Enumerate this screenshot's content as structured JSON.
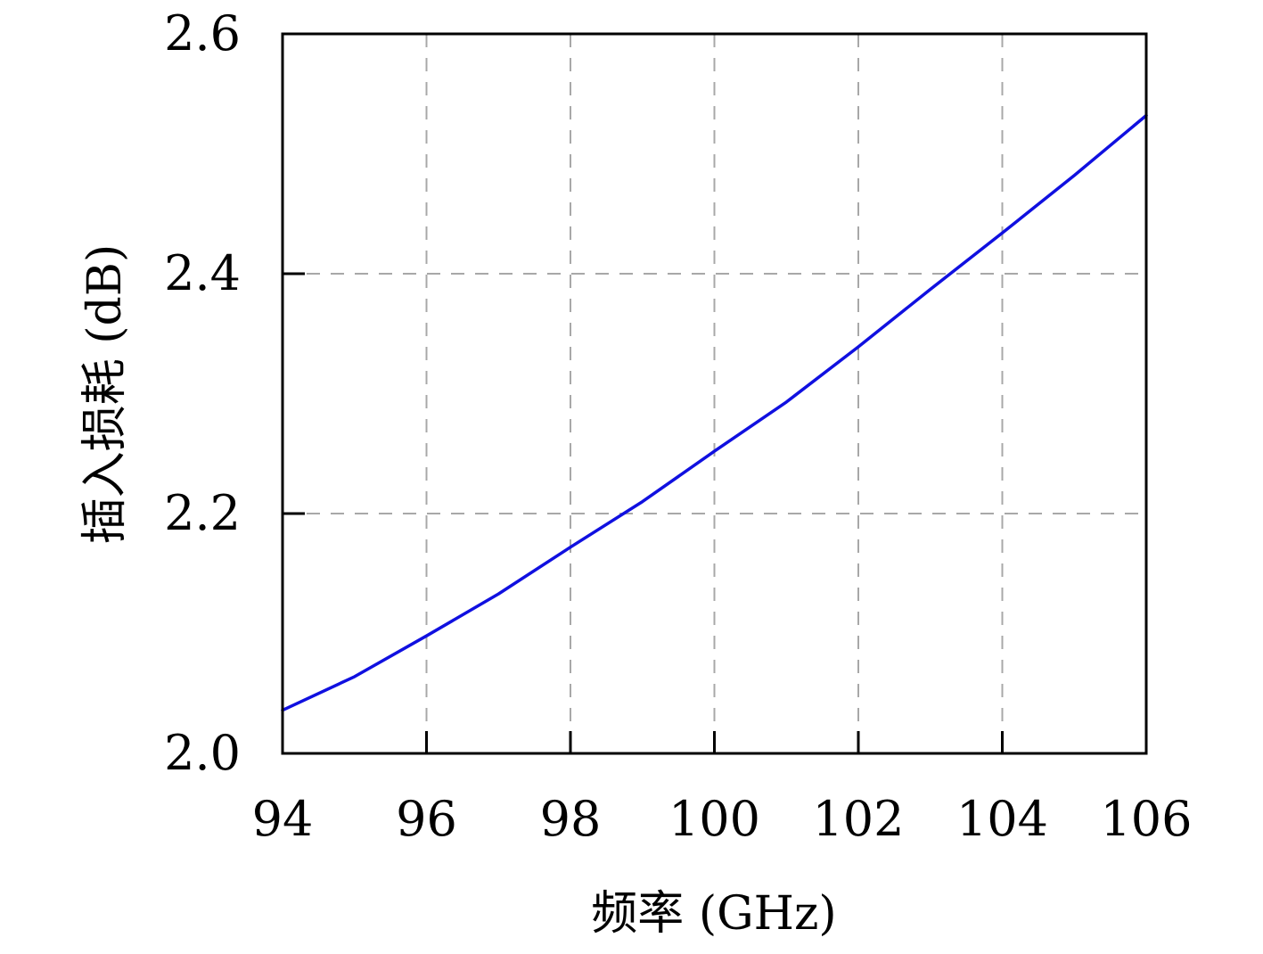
{
  "chart_data": {
    "type": "line",
    "title": "",
    "xlabel": "频率 (GHz)",
    "ylabel": "插入损耗 (dB)",
    "xlim": [
      94,
      106
    ],
    "ylim": [
      2.0,
      2.6
    ],
    "xticks": [
      94,
      96,
      98,
      100,
      102,
      104,
      106
    ],
    "yticks": [
      2.0,
      2.2,
      2.4,
      2.6
    ],
    "xtick_labels": [
      "94",
      "96",
      "98",
      "100",
      "102",
      "104",
      "106"
    ],
    "ytick_labels": [
      "2.0",
      "2.2",
      "2.4",
      "2.6"
    ],
    "grid": true,
    "grid_style": "dashed",
    "legend": "none",
    "series": [
      {
        "color": "#1010e0",
        "x": [
          94,
          95,
          96,
          97,
          98,
          99,
          100,
          101,
          102,
          103,
          104,
          105,
          106
        ],
        "y": [
          2.036,
          2.064,
          2.098,
          2.133,
          2.172,
          2.21,
          2.252,
          2.293,
          2.339,
          2.387,
          2.434,
          2.482,
          2.532
        ]
      }
    ]
  }
}
